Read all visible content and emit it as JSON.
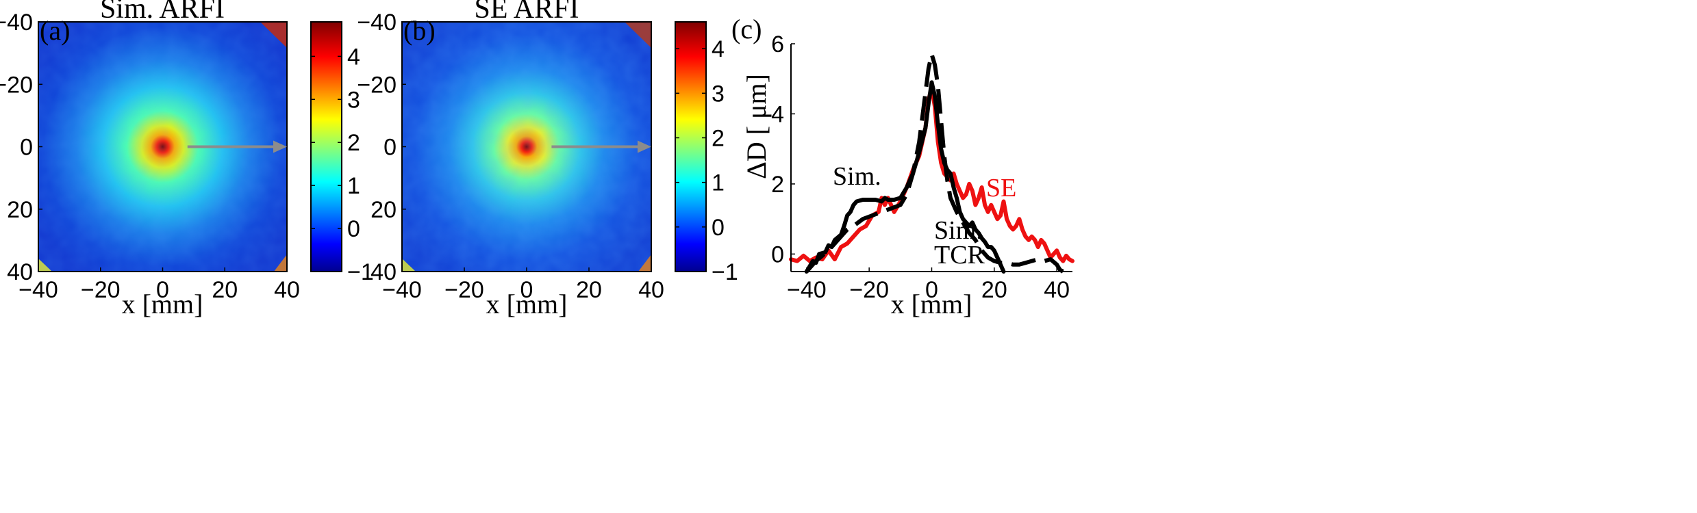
{
  "chart_data": [
    {
      "type": "heatmap",
      "panel_label": "(a)",
      "title": "Sim. ARFI",
      "xlabel": "x [mm]",
      "ylabel": "",
      "xlim": [
        -40,
        40
      ],
      "ylim": [
        40,
        -40
      ],
      "xticks": [
        "−40",
        "−20",
        "0",
        "20",
        "40"
      ],
      "yticks": [
        "−40",
        "−20",
        "0",
        "20",
        "40"
      ],
      "colorbar": {
        "ticks": [
          "4",
          "3",
          "2",
          "1",
          "0",
          "−1"
        ],
        "range": [
          -1,
          4.8
        ],
        "colormap": "jet"
      },
      "peak": {
        "x": 0,
        "y": 0,
        "value": 4.8
      },
      "arrow": {
        "from_x": 8,
        "to_x": 40,
        "y": 0,
        "color": "#8c8c8c"
      }
    },
    {
      "type": "heatmap",
      "panel_label": "(b)",
      "title": "SE ARFI",
      "xlabel": "x [mm]",
      "ylabel": "",
      "xlim": [
        -40,
        40
      ],
      "ylim": [
        40,
        -40
      ],
      "xticks": [
        "−40",
        "−20",
        "0",
        "20",
        "40"
      ],
      "yticks": [
        "−40",
        "−20",
        "0",
        "20",
        "40"
      ],
      "colorbar": {
        "ticks": [
          "4",
          "3",
          "2",
          "1",
          "0",
          "−1"
        ],
        "range": [
          -1,
          4.6
        ],
        "colormap": "jet"
      },
      "peak": {
        "x": 0,
        "y": 0,
        "value": 4.6
      },
      "arrow": {
        "from_x": 8,
        "to_x": 40,
        "y": 0,
        "color": "#8c8c8c"
      }
    },
    {
      "type": "line",
      "panel_label": "(c)",
      "title": "",
      "xlabel": "x [mm]",
      "ylabel": "ΔD [ μm]",
      "xlim": [
        -45,
        45
      ],
      "ylim": [
        -0.5,
        6
      ],
      "xticks": [
        "−40",
        "−20",
        "0",
        "20",
        "40"
      ],
      "yticks": [
        "0",
        "2",
        "4",
        "6"
      ],
      "series_labels": {
        "sim": "Sim.",
        "se": "SE",
        "sim_tcr_1": "Sim.",
        "sim_tcr_2": "TCR"
      },
      "series": [
        {
          "name": "SE",
          "color": "#ee1111",
          "dash": "solid",
          "points": [
            [
              -45,
              -0.15
            ],
            [
              -43,
              -0.2
            ],
            [
              -41,
              -0.05
            ],
            [
              -39,
              -0.2
            ],
            [
              -37,
              -0.1
            ],
            [
              -35,
              -0.15
            ],
            [
              -33,
              0.1
            ],
            [
              -31,
              -0.15
            ],
            [
              -29,
              0.2
            ],
            [
              -27,
              0.3
            ],
            [
              -25,
              0.5
            ],
            [
              -23,
              0.7
            ],
            [
              -21,
              0.8
            ],
            [
              -19,
              1.1
            ],
            [
              -17,
              1.2
            ],
            [
              -16,
              1.6
            ],
            [
              -15,
              1.4
            ],
            [
              -14,
              1.6
            ],
            [
              -12,
              1.2
            ],
            [
              -10,
              1.5
            ],
            [
              -8,
              1.9
            ],
            [
              -6,
              2.4
            ],
            [
              -4,
              2.8
            ],
            [
              -2,
              3.6
            ],
            [
              -1,
              4.4
            ],
            [
              0,
              4.75
            ],
            [
              1,
              4.2
            ],
            [
              2,
              3.2
            ],
            [
              3,
              2.6
            ],
            [
              4,
              2.3
            ],
            [
              5,
              2.2
            ],
            [
              6,
              2.1
            ],
            [
              7,
              2.3
            ],
            [
              8,
              2.0
            ],
            [
              9,
              1.8
            ],
            [
              10,
              1.6
            ],
            [
              11,
              1.7
            ],
            [
              12,
              2.0
            ],
            [
              13,
              1.8
            ],
            [
              14,
              1.4
            ],
            [
              15,
              1.6
            ],
            [
              16,
              1.9
            ],
            [
              17,
              1.4
            ],
            [
              18,
              1.2
            ],
            [
              19,
              1.4
            ],
            [
              20,
              1.2
            ],
            [
              21,
              1.0
            ],
            [
              22,
              1.1
            ],
            [
              23,
              1.5
            ],
            [
              24,
              1.0
            ],
            [
              25,
              0.8
            ],
            [
              26,
              0.7
            ],
            [
              27,
              0.8
            ],
            [
              28,
              1.0
            ],
            [
              29,
              0.7
            ],
            [
              30,
              0.5
            ],
            [
              31,
              0.4
            ],
            [
              32,
              0.5
            ],
            [
              33,
              0.4
            ],
            [
              34,
              0.2
            ],
            [
              35,
              0.4
            ],
            [
              36,
              0.3
            ],
            [
              38,
              -0.1
            ],
            [
              39,
              0.0
            ],
            [
              40,
              0.1
            ],
            [
              41,
              -0.1
            ],
            [
              42,
              -0.2
            ],
            [
              43,
              -0.05
            ],
            [
              44,
              -0.15
            ],
            [
              45,
              -0.2
            ]
          ]
        },
        {
          "name": "Sim.",
          "color": "#000000",
          "dash": "solid",
          "points": [
            [
              -40,
              -0.5
            ],
            [
              -39,
              -0.35
            ],
            [
              -38,
              -0.2
            ],
            [
              -37,
              -0.25
            ],
            [
              -36,
              0.0
            ],
            [
              -34,
              0.05
            ],
            [
              -33,
              0.25
            ],
            [
              -32,
              0.2
            ],
            [
              -31,
              0.4
            ],
            [
              -29,
              0.55
            ],
            [
              -28,
              0.8
            ],
            [
              -27,
              1.1
            ],
            [
              -26,
              1.2
            ],
            [
              -25,
              1.4
            ],
            [
              -24,
              1.5
            ],
            [
              -22,
              1.55
            ],
            [
              -20,
              1.55
            ],
            [
              -18,
              1.55
            ],
            [
              -16,
              1.5
            ],
            [
              -15,
              1.6
            ],
            [
              -14,
              1.55
            ],
            [
              -12,
              1.55
            ],
            [
              -10,
              1.6
            ],
            [
              -8,
              1.9
            ],
            [
              -6,
              2.3
            ],
            [
              -4,
              2.9
            ],
            [
              -2,
              3.6
            ],
            [
              -1,
              4.3
            ],
            [
              0,
              4.9
            ],
            [
              1,
              4.5
            ],
            [
              2,
              3.7
            ],
            [
              3,
              3.0
            ],
            [
              4,
              2.6
            ],
            [
              5,
              2.4
            ],
            [
              6,
              2.3
            ],
            [
              7,
              1.9
            ],
            [
              8,
              1.6
            ],
            [
              9,
              1.2
            ],
            [
              10,
              1.0
            ],
            [
              11,
              0.9
            ],
            [
              12,
              0.8
            ],
            [
              13,
              0.9
            ],
            [
              14,
              0.7
            ],
            [
              15,
              0.6
            ],
            [
              16,
              0.45
            ],
            [
              17,
              0.35
            ],
            [
              18,
              0.2
            ],
            [
              19,
              0.2
            ],
            [
              20,
              0.1
            ],
            [
              21,
              -0.1
            ],
            [
              22,
              -0.3
            ],
            [
              23,
              -0.5
            ]
          ]
        },
        {
          "name": "Sim. TCR",
          "color": "#000000",
          "dash": "dashed",
          "points": [
            [
              -40,
              -0.5
            ],
            [
              -37,
              -0.2
            ],
            [
              -35,
              -0.05
            ],
            [
              -32,
              0.2
            ],
            [
              -29,
              0.5
            ],
            [
              -27,
              0.7
            ],
            [
              -25,
              0.8
            ],
            [
              -22,
              1.0
            ],
            [
              -19,
              1.1
            ],
            [
              -16,
              1.2
            ],
            [
              -13,
              1.3
            ],
            [
              -10,
              1.4
            ],
            [
              -8,
              1.7
            ],
            [
              -6,
              2.3
            ],
            [
              -4,
              3.2
            ],
            [
              -3,
              3.9
            ],
            [
              -2,
              4.6
            ],
            [
              -1,
              5.3
            ],
            [
              0,
              5.7
            ],
            [
              1,
              5.4
            ],
            [
              2,
              4.8
            ],
            [
              3,
              3.8
            ],
            [
              4,
              2.8
            ],
            [
              5,
              2.1
            ],
            [
              6,
              1.6
            ],
            [
              8,
              1.2
            ],
            [
              10,
              0.9
            ],
            [
              12,
              0.6
            ],
            [
              14,
              0.4
            ],
            [
              16,
              0.1
            ],
            [
              18,
              -0.1
            ],
            [
              20,
              -0.2
            ],
            [
              22,
              -0.25
            ],
            [
              24,
              -0.25
            ],
            [
              26,
              -0.3
            ],
            [
              28,
              -0.3
            ],
            [
              30,
              -0.25
            ],
            [
              32,
              -0.2
            ],
            [
              34,
              -0.15
            ],
            [
              36,
              -0.2
            ],
            [
              38,
              -0.15
            ],
            [
              40,
              -0.3
            ],
            [
              41,
              -0.45
            ],
            [
              42,
              -0.5
            ]
          ]
        }
      ]
    }
  ]
}
